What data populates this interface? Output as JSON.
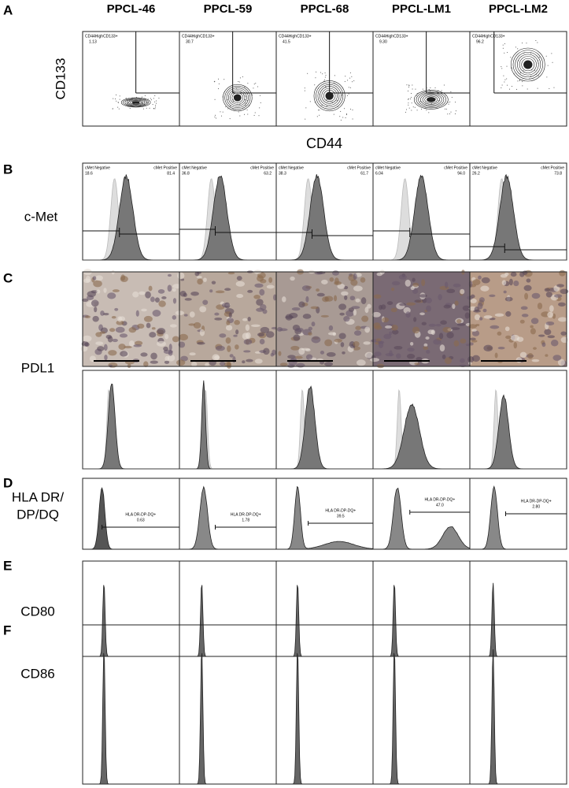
{
  "column_headers": [
    "PPCL-46",
    "PPCL-59",
    "PPCL-68",
    "PPCL-LM1",
    "PPCL-LM2"
  ],
  "panels": {
    "A": {
      "letter": "A",
      "marker": "CD133",
      "x_axis_label": "CD44",
      "gate_label": "CD44HighCD133+",
      "gate_values": [
        "1.13",
        "30.7",
        "41.5",
        "9.30",
        "96.2"
      ]
    },
    "B": {
      "letter": "B",
      "marker": "c-Met",
      "negative_label": "cMet Negative",
      "positive_label": "cMet Positive",
      "negative_values": [
        "18.6",
        "36.8",
        "38.3",
        "6.04",
        "26.2"
      ],
      "positive_values": [
        "81.4",
        "63.2",
        "61.7",
        "94.0",
        "73.8"
      ]
    },
    "C": {
      "letter": "C",
      "marker": "PDL1"
    },
    "D": {
      "letter": "D",
      "marker_lines": [
        "HLA DR/",
        "DP/DQ"
      ],
      "gate_label": "HLA DR-DP-DQ+",
      "gate_values": [
        "0.63",
        "1.78",
        "39.5",
        "47.0",
        "2.80"
      ]
    },
    "E": {
      "letter": "E",
      "marker": "CD80"
    },
    "F": {
      "letter": "F",
      "marker": "CD86"
    }
  }
}
